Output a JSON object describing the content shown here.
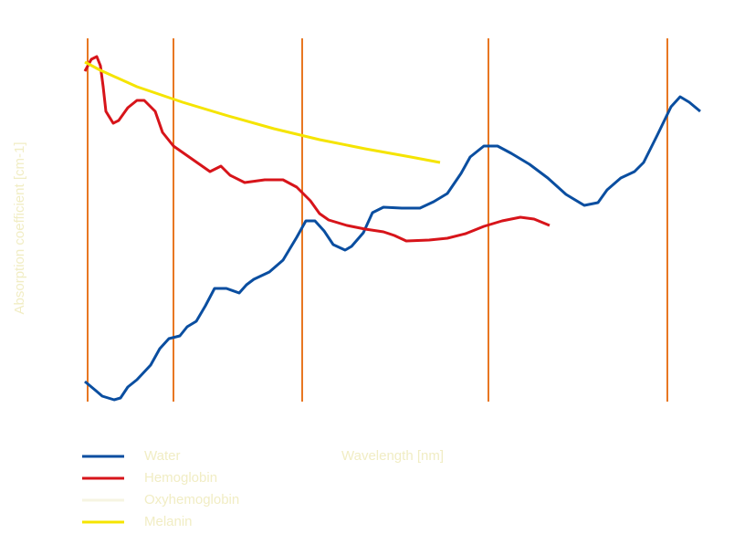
{
  "chart_data": {
    "type": "line",
    "x_label": "Wavelength [nm]",
    "y_label": "Absorption coefficient [cm-1]",
    "xlim": [
      90,
      770
    ],
    "ylim": [
      0,
      400
    ],
    "markers": [
      96,
      190,
      331,
      535,
      731
    ],
    "marker_color": "#e87722",
    "series": [
      {
        "name": "Water",
        "color": "#0a4ea0",
        "x": [
          93,
          105,
          112,
          125,
          132,
          140,
          150,
          165,
          175,
          185,
          197,
          205,
          215,
          225,
          235,
          248,
          262,
          270,
          278,
          295,
          310,
          325,
          335,
          345,
          355,
          365,
          378,
          385,
          398,
          408,
          420,
          440,
          460,
          475,
          490,
          505,
          515,
          530,
          545,
          560,
          580,
          600,
          620,
          640,
          655,
          665,
          680,
          695,
          705,
          720,
          735,
          745,
          755,
          767
        ],
        "values": [
          22,
          12,
          6,
          2,
          4,
          16,
          24,
          40,
          58,
          69,
          72,
          82,
          88,
          105,
          124,
          124,
          119,
          128,
          134,
          142,
          155,
          180,
          198,
          198,
          187,
          172,
          166,
          170,
          185,
          207,
          213,
          212,
          212,
          219,
          228,
          250,
          268,
          280,
          280,
          272,
          260,
          245,
          227,
          215,
          218,
          232,
          245,
          252,
          262,
          292,
          323,
          334,
          328,
          318
        ]
      },
      {
        "name": "Hemoglobin",
        "color": "#d7141a",
        "x": [
          93,
          100,
          106,
          110,
          113,
          116,
          124,
          130,
          140,
          150,
          158,
          170,
          178,
          190,
          210,
          230,
          242,
          252,
          268,
          290,
          310,
          325,
          340,
          350,
          360,
          380,
          400,
          420,
          432,
          445,
          470,
          490,
          510,
          530,
          550,
          570,
          585,
          602
        ],
        "values": [
          362,
          375,
          378,
          368,
          345,
          318,
          305,
          308,
          322,
          330,
          330,
          318,
          295,
          280,
          266,
          252,
          258,
          248,
          240,
          243,
          243,
          235,
          220,
          206,
          199,
          193,
          189,
          186,
          182,
          176,
          177,
          179,
          184,
          192,
          198,
          202,
          200,
          193
        ]
      },
      {
        "name": "Oxyhemoglobin",
        "color": "#f6f4e2",
        "x": [],
        "values": []
      },
      {
        "name": "Melanin",
        "color": "#f5e400",
        "x": [
          93,
          110,
          150,
          200,
          250,
          300,
          350,
          400,
          450,
          482
        ],
        "values": [
          372,
          363,
          345,
          328,
          313,
          299,
          287,
          277,
          268,
          262
        ]
      }
    ]
  }
}
